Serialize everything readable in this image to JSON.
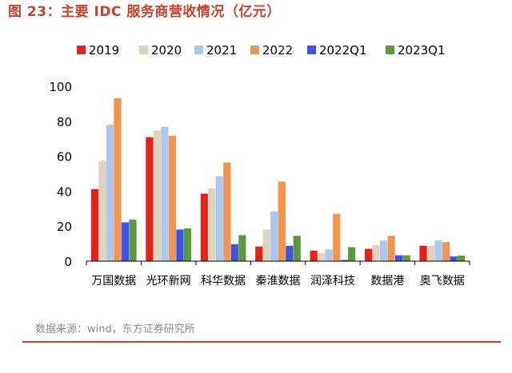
{
  "figure_title": "图 23：主要 IDC 服务商营收情况（亿元）",
  "source": "数据来源：wind，东方证券研究所",
  "colors": {
    "title": "#c8432b",
    "series": [
      "#e2231a",
      "#ddd3bf",
      "#a9c9f2",
      "#f5944d",
      "#3a54e8",
      "#5b9a3c"
    ]
  },
  "chart_data": {
    "type": "bar",
    "title": "",
    "xlabel": "",
    "ylabel": "",
    "ylim": [
      0,
      100
    ],
    "yticks": [
      0,
      20,
      40,
      60,
      80,
      100
    ],
    "grid": false,
    "legend_position": "top",
    "categories": [
      "万国数据",
      "光环新网",
      "科华数据",
      "秦淮数据",
      "润泽科技",
      "数据港",
      "奥飞数据"
    ],
    "series": [
      {
        "name": "2019",
        "values": [
          41.2,
          70.9,
          38.6,
          8.4,
          6.0,
          7.1,
          8.8
        ]
      },
      {
        "name": "2020",
        "values": [
          57.4,
          74.6,
          41.7,
          18.1,
          4.5,
          9.1,
          8.8
        ]
      },
      {
        "name": "2021",
        "values": [
          78.0,
          76.8,
          48.6,
          28.4,
          6.7,
          11.8,
          11.8
        ]
      },
      {
        "name": "2022",
        "values": [
          93.2,
          71.7,
          56.4,
          45.5,
          27.1,
          14.5,
          10.9
        ]
      },
      {
        "name": "2022Q1",
        "values": [
          22.2,
          18.1,
          9.7,
          8.8,
          0.7,
          3.4,
          2.7
        ]
      },
      {
        "name": "2023Q1",
        "values": [
          23.7,
          18.7,
          14.9,
          14.5,
          8.0,
          3.4,
          3.2
        ]
      }
    ]
  }
}
